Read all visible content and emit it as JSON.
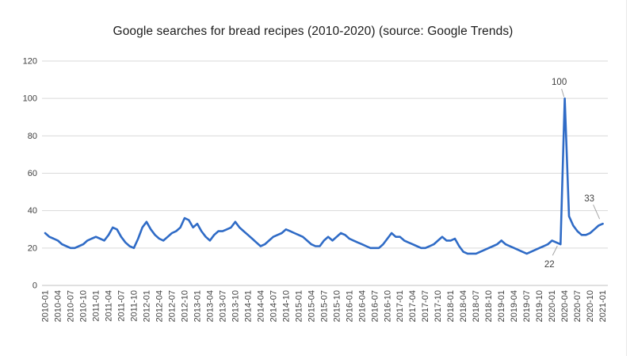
{
  "page": {
    "title": "Google searches for bread recipes (2010-2020) (source: Google Trends)"
  },
  "colors": {
    "line": "#2f6bc6",
    "grid": "#d9d9d9",
    "axis": "#c0c0c0",
    "tick_text": "#3f3f3f",
    "title_text": "#1c1c1c",
    "annotation_text": "#3f3f3f",
    "leader_line": "#a6a6a6",
    "divider": "#e8e8e8",
    "background": "#ffffff"
  },
  "chart_data": {
    "type": "line",
    "title": "Google searches for bread recipes (2010-2020) (source: Google Trends)",
    "series_name": "Google searches for bread recipes",
    "ylim": [
      0,
      120
    ],
    "yticks": [
      0,
      20,
      40,
      60,
      80,
      100,
      120
    ],
    "xtick_every": 3,
    "grid": true,
    "legend_position": "none",
    "x": [
      "2010-01",
      "2010-02",
      "2010-03",
      "2010-04",
      "2010-05",
      "2010-06",
      "2010-07",
      "2010-08",
      "2010-09",
      "2010-10",
      "2010-11",
      "2010-12",
      "2011-01",
      "2011-02",
      "2011-03",
      "2011-04",
      "2011-05",
      "2011-06",
      "2011-07",
      "2011-08",
      "2011-09",
      "2011-10",
      "2011-11",
      "2011-12",
      "2012-01",
      "2012-02",
      "2012-03",
      "2012-04",
      "2012-05",
      "2012-06",
      "2012-07",
      "2012-08",
      "2012-09",
      "2012-10",
      "2012-11",
      "2012-12",
      "2013-01",
      "2013-02",
      "2013-03",
      "2013-04",
      "2013-05",
      "2013-06",
      "2013-07",
      "2013-08",
      "2013-09",
      "2013-10",
      "2013-11",
      "2013-12",
      "2014-01",
      "2014-02",
      "2014-03",
      "2014-04",
      "2014-05",
      "2014-06",
      "2014-07",
      "2014-08",
      "2014-09",
      "2014-10",
      "2014-11",
      "2014-12",
      "2015-01",
      "2015-02",
      "2015-03",
      "2015-04",
      "2015-05",
      "2015-06",
      "2015-07",
      "2015-08",
      "2015-09",
      "2015-10",
      "2015-11",
      "2015-12",
      "2016-01",
      "2016-02",
      "2016-03",
      "2016-04",
      "2016-05",
      "2016-06",
      "2016-07",
      "2016-08",
      "2016-09",
      "2016-10",
      "2016-11",
      "2016-12",
      "2017-01",
      "2017-02",
      "2017-03",
      "2017-04",
      "2017-05",
      "2017-06",
      "2017-07",
      "2017-08",
      "2017-09",
      "2017-10",
      "2017-11",
      "2017-12",
      "2018-01",
      "2018-02",
      "2018-03",
      "2018-04",
      "2018-05",
      "2018-06",
      "2018-07",
      "2018-08",
      "2018-09",
      "2018-10",
      "2018-11",
      "2018-12",
      "2019-01",
      "2019-02",
      "2019-03",
      "2019-04",
      "2019-05",
      "2019-06",
      "2019-07",
      "2019-08",
      "2019-09",
      "2019-10",
      "2019-11",
      "2019-12",
      "2020-01",
      "2020-02",
      "2020-03",
      "2020-04",
      "2020-05",
      "2020-06",
      "2020-07",
      "2020-08",
      "2020-09",
      "2020-10",
      "2020-11",
      "2020-12",
      "2021-01"
    ],
    "values": [
      28,
      26,
      25,
      24,
      22,
      21,
      20,
      20,
      21,
      22,
      24,
      25,
      26,
      25,
      24,
      27,
      31,
      30,
      26,
      23,
      21,
      20,
      25,
      31,
      34,
      30,
      27,
      25,
      24,
      26,
      28,
      29,
      31,
      36,
      35,
      31,
      33,
      29,
      26,
      24,
      27,
      29,
      29,
      30,
      31,
      34,
      31,
      29,
      27,
      25,
      23,
      21,
      22,
      24,
      26,
      27,
      28,
      30,
      29,
      28,
      27,
      26,
      24,
      22,
      21,
      21,
      24,
      26,
      24,
      26,
      28,
      27,
      25,
      24,
      23,
      22,
      21,
      20,
      20,
      20,
      22,
      25,
      28,
      26,
      26,
      24,
      23,
      22,
      21,
      20,
      20,
      21,
      22,
      24,
      26,
      24,
      24,
      25,
      21,
      18,
      17,
      17,
      17,
      18,
      19,
      20,
      21,
      22,
      24,
      22,
      21,
      20,
      19,
      18,
      17,
      18,
      19,
      20,
      21,
      22,
      24,
      23,
      22,
      100,
      37,
      32,
      29,
      27,
      27,
      28,
      30,
      32,
      33
    ],
    "annotations": [
      {
        "label": "100",
        "index": 123,
        "text_dx": -7,
        "text_dy": -17,
        "leader": [
          -4,
          -12,
          -1,
          -2
        ]
      },
      {
        "label": "22",
        "index": 122,
        "text_dx": -14,
        "text_dy": 29,
        "leader": [
          -10,
          14,
          -4,
          2
        ]
      },
      {
        "label": "33",
        "index": 132,
        "text_dx": -17,
        "text_dy": -28,
        "leader": [
          -12,
          -24,
          -4,
          -6
        ]
      }
    ]
  }
}
